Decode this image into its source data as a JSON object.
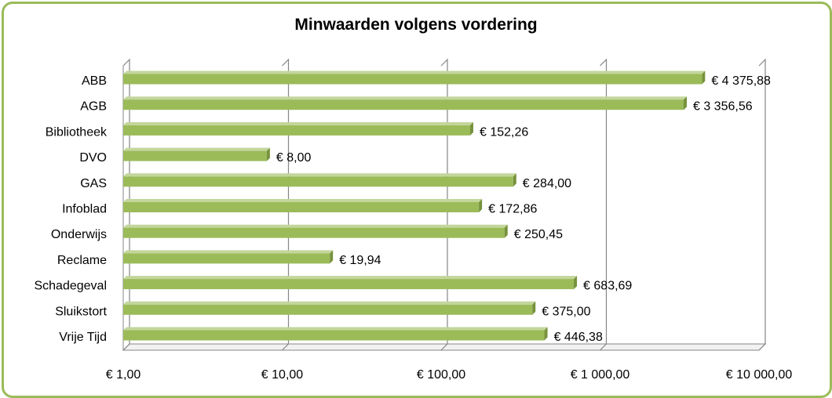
{
  "chart_data": {
    "type": "bar",
    "orientation": "horizontal",
    "title": "Minwaarden volgens vordering",
    "xlabel": "",
    "ylabel": "",
    "x_scale": "log10",
    "xlim": [
      1,
      10000
    ],
    "grid": true,
    "legend": "none",
    "categories": [
      "ABB",
      "AGB",
      "Bibliotheek",
      "DVO",
      "GAS",
      "Infoblad",
      "Onderwijs",
      "Reclame",
      "Schadegeval",
      "Sluikstort",
      "Vrije Tijd"
    ],
    "values": [
      4375.88,
      3356.56,
      152.26,
      8.0,
      284.0,
      172.86,
      250.45,
      19.94,
      683.69,
      375.0,
      446.38
    ],
    "data_labels": [
      "€ 4 375,88",
      "€ 3 356,56",
      "€  152,26",
      "€  8,00",
      "€  284,00",
      "€  172,86",
      "€  250,45",
      "€  19,94",
      "€  683,69",
      "€  375,00",
      "€  446,38"
    ],
    "x_ticks": [
      1,
      10,
      100,
      1000,
      10000
    ],
    "x_tick_labels": [
      "€  1,00",
      "€  10,00",
      "€  100,00",
      "€ 1 000,00",
      "€ 10 000,00"
    ],
    "colors": {
      "bar": "#9bbb59",
      "bar_top": "#c3d69b",
      "bar_side": "#76923c",
      "frame": "#9bbb59",
      "grid": "#868686"
    }
  }
}
